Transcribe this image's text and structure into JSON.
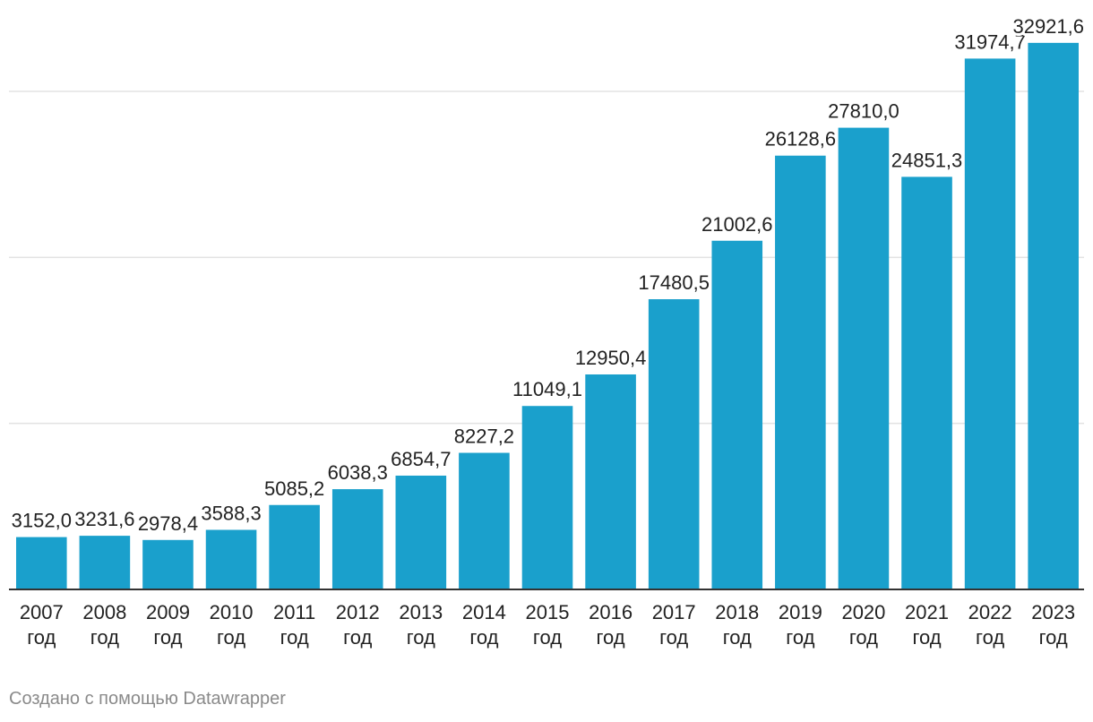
{
  "chart_data": {
    "type": "bar",
    "title": "",
    "xlabel": "",
    "ylabel": "",
    "categories": [
      "2007 год",
      "2008 год",
      "2009 год",
      "2010 год",
      "2011 год",
      "2012 год",
      "2013 год",
      "2014 год",
      "2015 год",
      "2016 год",
      "2017 год",
      "2018 год",
      "2019 год",
      "2020 год",
      "2021 год",
      "2022 год",
      "2023 год"
    ],
    "category_year": [
      "2007",
      "2008",
      "2009",
      "2010",
      "2011",
      "2012",
      "2013",
      "2014",
      "2015",
      "2016",
      "2017",
      "2018",
      "2019",
      "2020",
      "2021",
      "2022",
      "2023"
    ],
    "category_suffix": "год",
    "values": [
      3152.0,
      3231.6,
      2978.4,
      3588.3,
      5085.2,
      6038.3,
      6854.7,
      8227.2,
      11049.1,
      12950.4,
      17480.5,
      21002.6,
      26128.6,
      27810.0,
      24851.3,
      31974.7,
      32921.6
    ],
    "value_labels": [
      "3152,0",
      "3231,6",
      "2978,4",
      "3588,3",
      "5085,2",
      "6038,3",
      "6854,7",
      "8227,2",
      "11049,1",
      "12950,4",
      "17480,5",
      "21002,6",
      "26128,6",
      "27810,0",
      "24851,3",
      "31974,7",
      "32921,6"
    ],
    "ylim": [
      0,
      30000
    ],
    "gridlines": [
      0,
      10000,
      20000,
      30000
    ],
    "grid": true,
    "legend": "none",
    "bar_color": "#1aa0cc"
  },
  "footer": {
    "credit": "Создано с помощью Datawrapper"
  }
}
